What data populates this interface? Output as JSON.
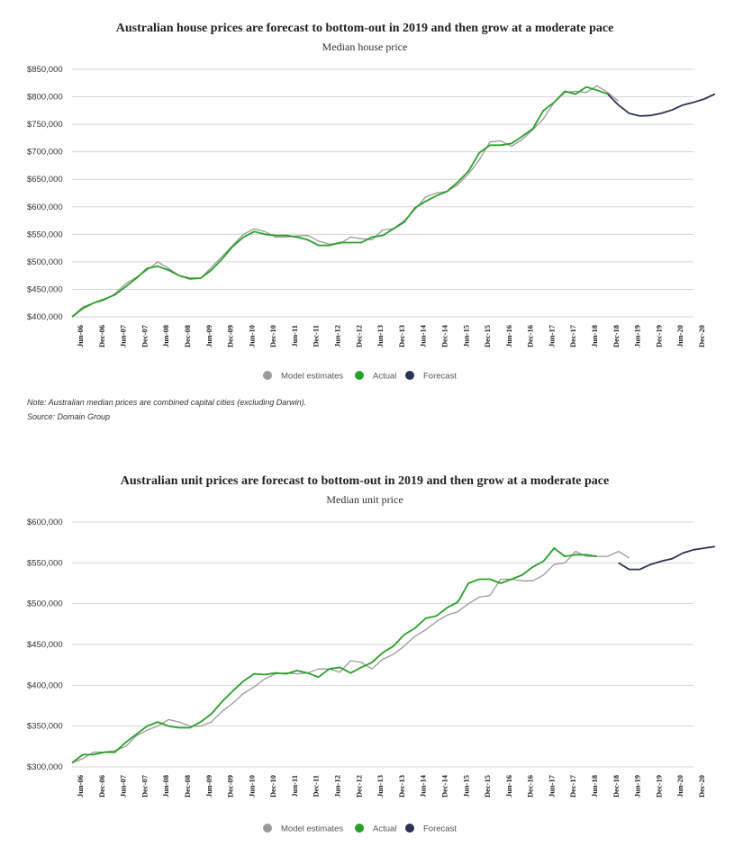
{
  "colors": {
    "model": "#9a9a9a",
    "actual": "#2aa02a",
    "forecast": "#2b3355",
    "grid": "#d5d5d5"
  },
  "legend": {
    "model": "Model estimates",
    "actual": "Actual",
    "forecast": "Forecast"
  },
  "notes": {
    "note": "Note: Australian median prices are combined capital cities (excluding Darwin).",
    "source": "Source: Domain Group"
  },
  "chart_data": [
    {
      "type": "line",
      "title": "Australian house prices are forecast to bottom-out in 2019 and then grow at a moderate pace",
      "subtitle": "Median house price",
      "x_labels": [
        "Jun-06",
        "Dec-06",
        "Jun-07",
        "Dec-07",
        "Jun-08",
        "Dec-08",
        "Jun-09",
        "Dec-09",
        "Jun-10",
        "Dec-10",
        "Jun-11",
        "Dec-11",
        "Jun-12",
        "Dec-12",
        "Jun-13",
        "Dec-13",
        "Jun-14",
        "Dec-14",
        "Jun-15",
        "Dec-15",
        "Jun-16",
        "Dec-16",
        "Jun-17",
        "Dec-17",
        "Jun-18",
        "Dec-18",
        "Jun-19",
        "Dec-19",
        "Jun-20",
        "Dec-20"
      ],
      "y_ticks": [
        "$400,000",
        "$450,000",
        "$500,000",
        "$550,000",
        "$600,000",
        "$650,000",
        "$700,000",
        "$750,000",
        "$800,000",
        "$850,000"
      ],
      "ylim": [
        400000,
        850000
      ],
      "grid": true,
      "legend_position": "bottom",
      "series": [
        {
          "name": "Model estimates",
          "key": "model",
          "start_quarter": 0,
          "values": [
            400000,
            418000,
            425000,
            430000,
            442000,
            460000,
            472000,
            485000,
            500000,
            488000,
            475000,
            468000,
            470000,
            490000,
            510000,
            530000,
            550000,
            560000,
            555000,
            545000,
            545000,
            547000,
            548000,
            538000,
            532000,
            533000,
            545000,
            542000,
            540000,
            558000,
            560000,
            575000,
            595000,
            618000,
            625000,
            628000,
            640000,
            660000,
            685000,
            718000,
            720000,
            710000,
            722000,
            740000,
            760000,
            790000,
            808000,
            810000,
            808000,
            820000,
            808000,
            792000
          ]
        },
        {
          "name": "Actual",
          "key": "actual",
          "start_quarter": 0,
          "values": [
            400000,
            415000,
            425000,
            432000,
            440000,
            455000,
            470000,
            488000,
            492000,
            485000,
            475000,
            470000,
            470000,
            485000,
            505000,
            528000,
            545000,
            555000,
            550000,
            548000,
            548000,
            545000,
            540000,
            530000,
            530000,
            535000,
            535000,
            535000,
            545000,
            548000,
            560000,
            572000,
            598000,
            610000,
            620000,
            628000,
            645000,
            665000,
            698000,
            712000,
            712000,
            715000,
            728000,
            742000,
            775000,
            790000,
            810000,
            805000,
            818000,
            812000,
            805000
          ]
        },
        {
          "name": "Forecast",
          "key": "forecast",
          "start_quarter": 50,
          "values": [
            805000,
            785000,
            770000,
            765000,
            766000,
            770000,
            776000,
            785000,
            790000,
            796000,
            805000
          ]
        }
      ]
    },
    {
      "type": "line",
      "title": "Australian unit prices are forecast to bottom-out in 2019 and then grow at a moderate pace",
      "subtitle": "Median unit price",
      "x_labels": [
        "Jun-06",
        "Dec-06",
        "Jun-07",
        "Dec-07",
        "Jun-08",
        "Dec-08",
        "Jun-09",
        "Dec-09",
        "Jun-10",
        "Dec-10",
        "Jun-11",
        "Dec-11",
        "Jun-12",
        "Dec-12",
        "Jun-13",
        "Dec-13",
        "Jun-14",
        "Dec-14",
        "Jun-15",
        "Dec-15",
        "Jun-16",
        "Dec-16",
        "Jun-17",
        "Dec-17",
        "Jun-18",
        "Dec-18",
        "Jun-19",
        "Dec-19",
        "Jun-20",
        "Dec-20"
      ],
      "y_ticks": [
        "$300,000",
        "$350,000",
        "$400,000",
        "$450,000",
        "$500,000",
        "$550,000",
        "$600,000"
      ],
      "ylim": [
        300000,
        600000
      ],
      "grid": true,
      "legend_position": "bottom",
      "series": [
        {
          "name": "Model estimates",
          "key": "model",
          "start_quarter": 0,
          "values": [
            305000,
            310000,
            318000,
            318000,
            320000,
            325000,
            338000,
            345000,
            350000,
            358000,
            355000,
            350000,
            350000,
            355000,
            368000,
            378000,
            390000,
            398000,
            408000,
            414000,
            415000,
            414000,
            415000,
            420000,
            420000,
            416000,
            430000,
            428000,
            420000,
            432000,
            438000,
            448000,
            460000,
            468000,
            478000,
            486000,
            490000,
            500000,
            508000,
            510000,
            530000,
            530000,
            528000,
            528000,
            535000,
            548000,
            550000,
            564000,
            558000,
            558000,
            558000,
            564000,
            556000
          ]
        },
        {
          "name": "Actual",
          "key": "actual",
          "start_quarter": 0,
          "values": [
            305000,
            315000,
            315000,
            318000,
            318000,
            330000,
            340000,
            350000,
            355000,
            350000,
            348000,
            348000,
            355000,
            365000,
            380000,
            393000,
            405000,
            414000,
            413000,
            415000,
            414000,
            418000,
            415000,
            410000,
            420000,
            422000,
            415000,
            422000,
            428000,
            440000,
            448000,
            462000,
            470000,
            482000,
            485000,
            495000,
            502000,
            525000,
            530000,
            530000,
            525000,
            530000,
            535000,
            545000,
            552000,
            568000,
            558000,
            560000,
            560000,
            558000
          ]
        },
        {
          "name": "Forecast",
          "key": "forecast",
          "start_quarter": 51,
          "values": [
            550000,
            542000,
            542000,
            548000,
            552000,
            555000,
            562000,
            566000,
            568000,
            570000
          ]
        }
      ]
    }
  ]
}
